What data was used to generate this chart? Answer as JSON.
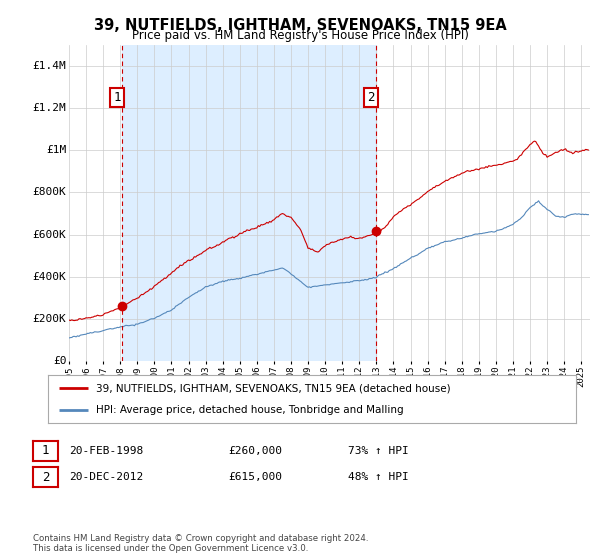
{
  "title": "39, NUTFIELDS, IGHTHAM, SEVENOAKS, TN15 9EA",
  "subtitle": "Price paid vs. HM Land Registry's House Price Index (HPI)",
  "ylim": [
    0,
    1500000
  ],
  "yticks": [
    0,
    200000,
    400000,
    600000,
    800000,
    1000000,
    1200000,
    1400000
  ],
  "ytick_labels": [
    "£0",
    "£200K",
    "£400K",
    "£600K",
    "£800K",
    "£1M",
    "£1.2M",
    "£1.4M"
  ],
  "sale1_year": 1998.13,
  "sale1_price": 260000,
  "sale1_label": "1",
  "sale2_year": 2012.97,
  "sale2_price": 615000,
  "sale2_label": "2",
  "property_color": "#cc0000",
  "hpi_color": "#5588bb",
  "shade_color": "#ddeeff",
  "legend_property": "39, NUTFIELDS, IGHTHAM, SEVENOAKS, TN15 9EA (detached house)",
  "legend_hpi": "HPI: Average price, detached house, Tonbridge and Malling",
  "table_row1": [
    "1",
    "20-FEB-1998",
    "£260,000",
    "73% ↑ HPI"
  ],
  "table_row2": [
    "2",
    "20-DEC-2012",
    "£615,000",
    "48% ↑ HPI"
  ],
  "footnote": "Contains HM Land Registry data © Crown copyright and database right 2024.\nThis data is licensed under the Open Government Licence v3.0.",
  "xmin": 1995.0,
  "xmax": 2025.5,
  "background_color": "#ffffff",
  "grid_color": "#cccccc"
}
